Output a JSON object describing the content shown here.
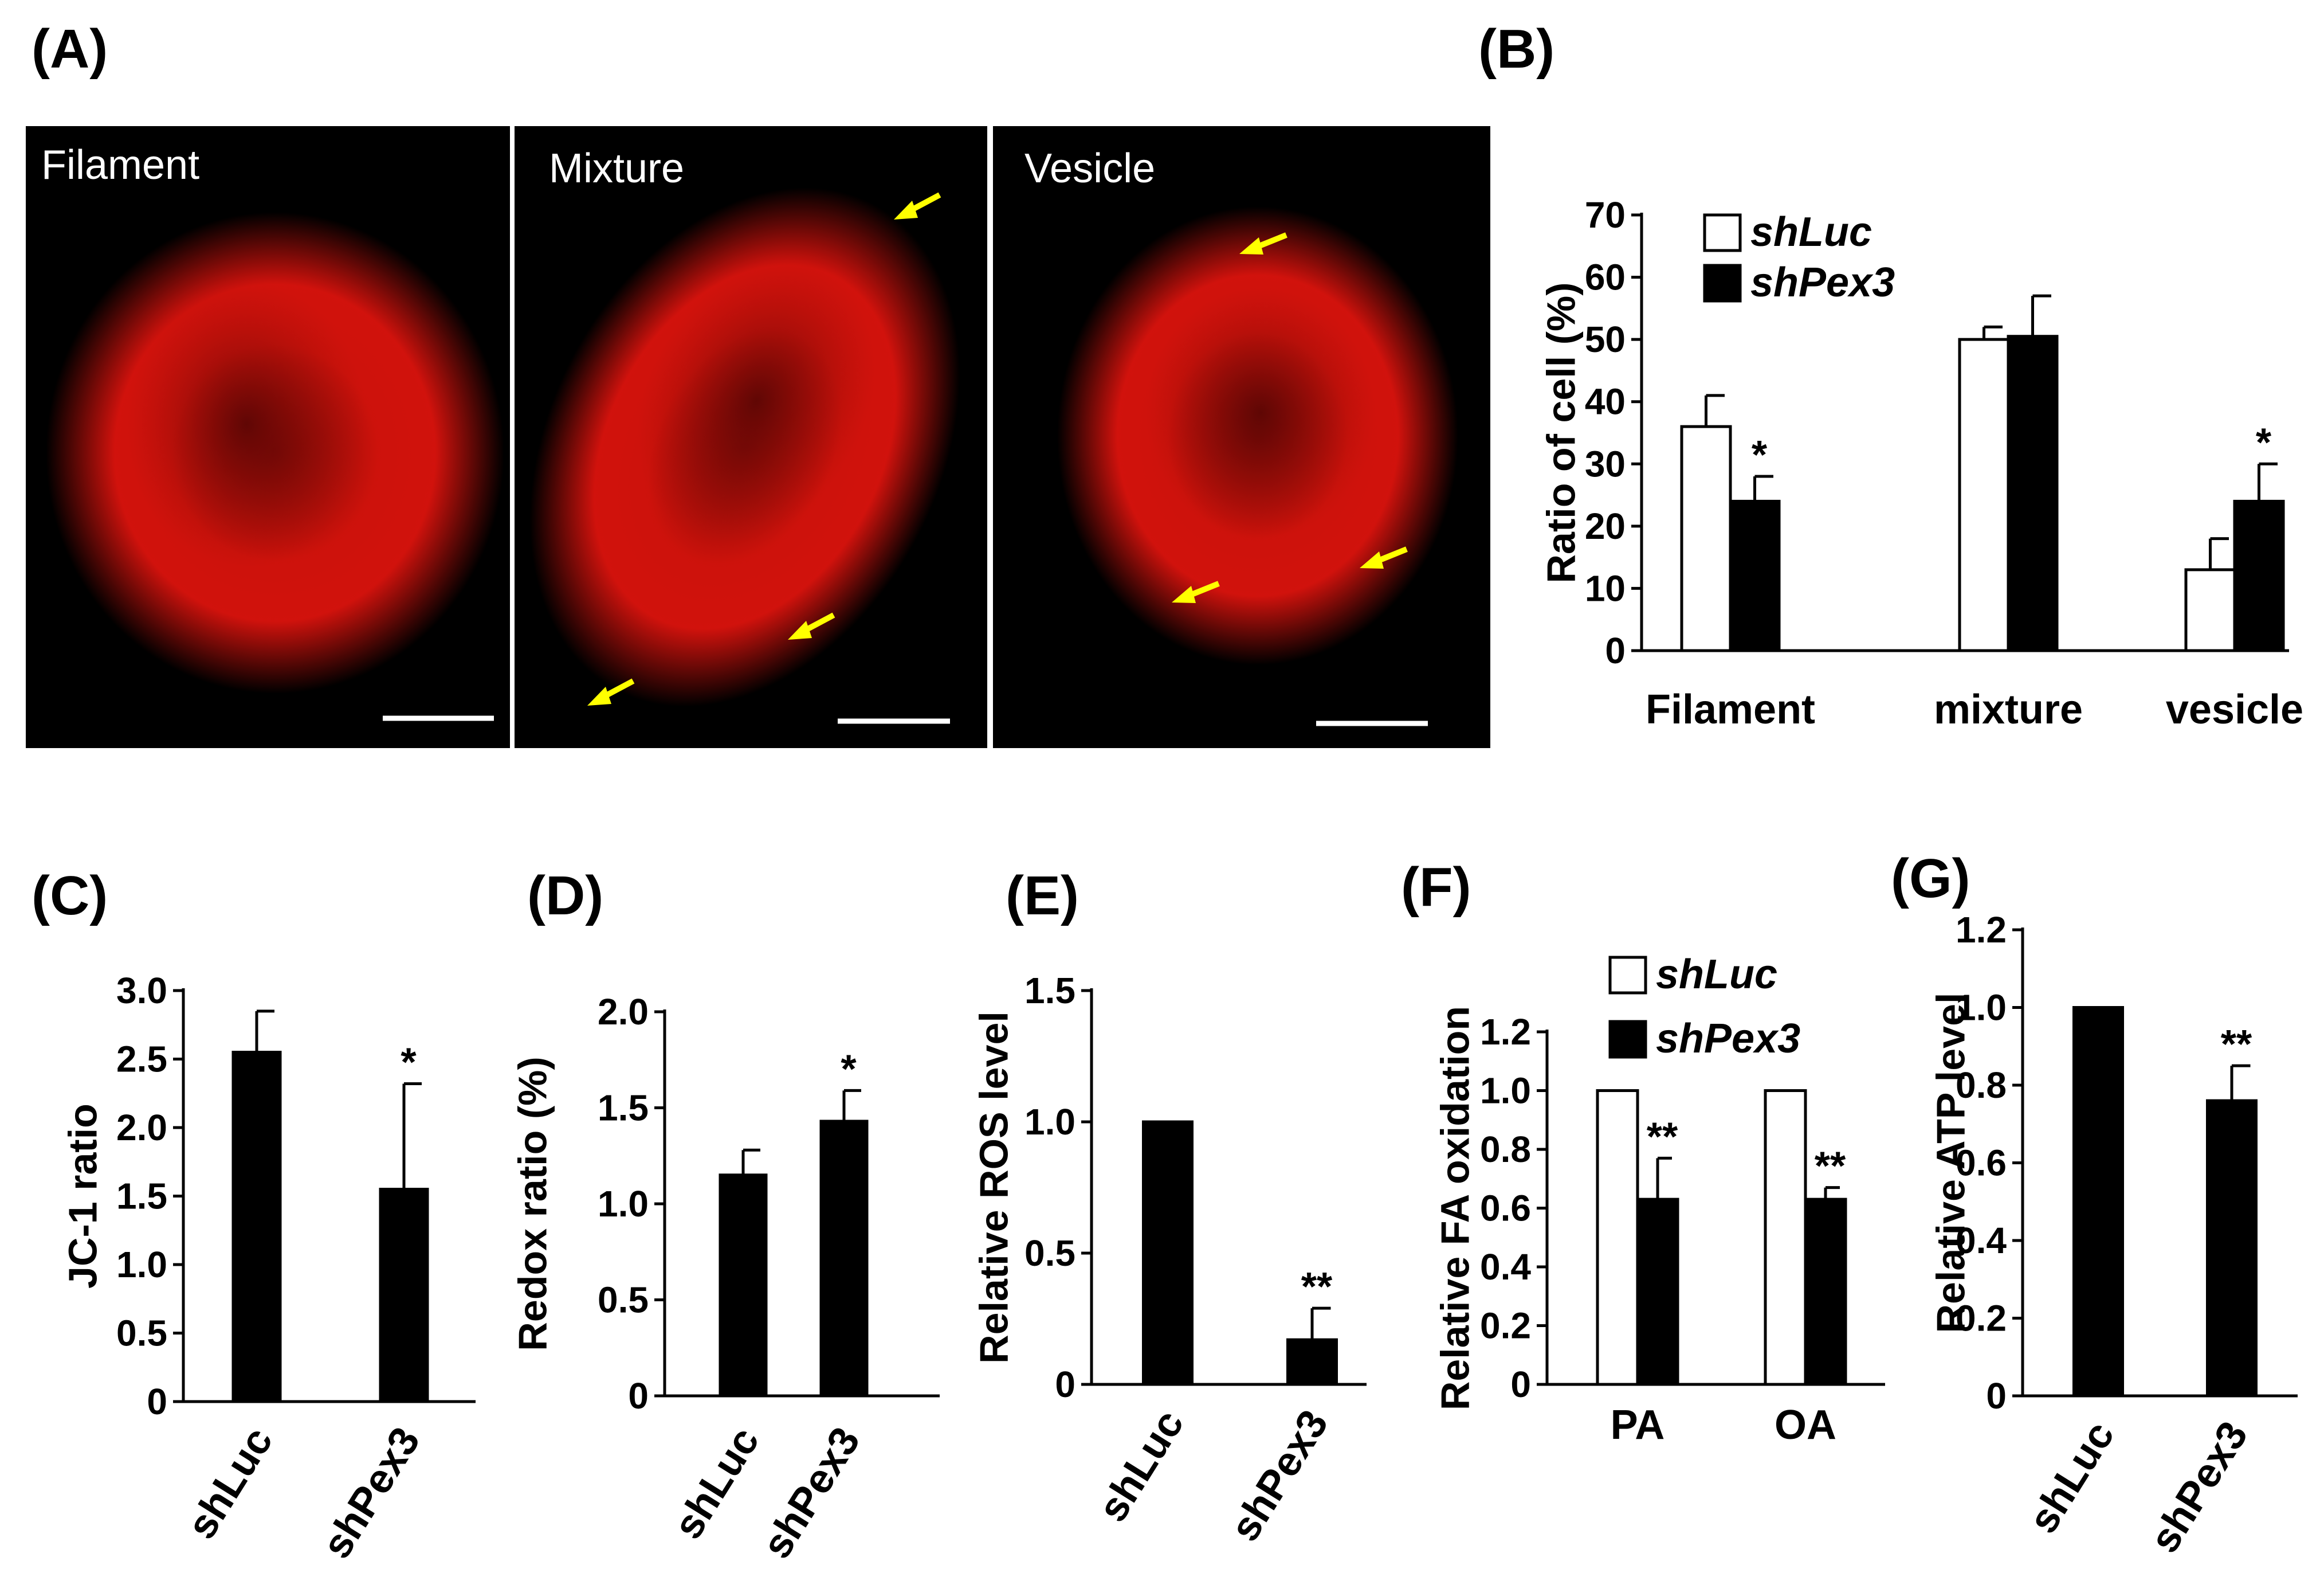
{
  "panel_labels": [
    "(A)",
    "(B)",
    "(C)",
    "(D)",
    "(E)",
    "(F)",
    "(G)"
  ],
  "colors": {
    "bar_dark": "#000000",
    "bar_light": "#ffffff",
    "mito": "#e8140e",
    "arrow": "#ffff00",
    "image_bg": "#000000"
  },
  "micrographs": [
    {
      "label": "Filament",
      "arrows": 0
    },
    {
      "label": "Mixture",
      "arrows": 3
    },
    {
      "label": "Vesicle",
      "arrows": 3
    }
  ],
  "chart_data": [
    {
      "panel": "(B)",
      "type": "bar",
      "categories": [
        "Filament",
        "mixture",
        "vesicle"
      ],
      "ylabel": "Ratio of cell (%)",
      "ylim": [
        0,
        70
      ],
      "yticks": [
        "0",
        "10",
        "20",
        "30",
        "40",
        "50",
        "60",
        "70"
      ],
      "legend": "top-left",
      "series": [
        {
          "name": "shLuc",
          "fill": "#ffffff",
          "values": [
            36,
            50,
            13
          ],
          "errors": [
            5,
            2,
            5
          ]
        },
        {
          "name": "shPex3",
          "fill": "#000000",
          "values": [
            24,
            50.5,
            24
          ],
          "errors": [
            4,
            6.5,
            6
          ]
        }
      ],
      "annotations": [
        {
          "category": 0,
          "series": 1,
          "text": "*"
        },
        {
          "category": 2,
          "series": 1,
          "text": "*"
        }
      ]
    },
    {
      "panel": "(C)",
      "type": "bar",
      "categories": [
        "shLuc",
        "shPex3"
      ],
      "ylabel": "JC-1 ratio",
      "ylim": [
        0,
        3.0
      ],
      "yticks": [
        "0",
        "0.5",
        "1.0",
        "1.5",
        "2.0",
        "2.5",
        "3.0"
      ],
      "values": [
        2.55,
        1.55
      ],
      "errors": [
        0.3,
        0.77
      ],
      "annotations": [
        {
          "category": 1,
          "text": "*"
        }
      ]
    },
    {
      "panel": "(D)",
      "type": "bar",
      "categories": [
        "shLuc",
        "shPex3"
      ],
      "ylabel": "Redox ratio (%)",
      "ylim": [
        0,
        2.0
      ],
      "yticks": [
        "0",
        "0.5",
        "1.0",
        "1.5",
        "2.0"
      ],
      "values": [
        1.15,
        1.43
      ],
      "errors": [
        0.13,
        0.16
      ],
      "annotations": [
        {
          "category": 1,
          "text": "*"
        }
      ]
    },
    {
      "panel": "(E)",
      "type": "bar",
      "categories": [
        "shLuc",
        "shPex3"
      ],
      "ylabel": "Relative ROS level",
      "ylim": [
        0,
        1.5
      ],
      "yticks": [
        "0",
        "0.5",
        "1.0",
        "1.5"
      ],
      "values": [
        1.0,
        0.17
      ],
      "errors": [
        0,
        0.12
      ],
      "annotations": [
        {
          "category": 1,
          "text": "**"
        }
      ]
    },
    {
      "panel": "(F)",
      "type": "bar",
      "categories": [
        "PA",
        "OA"
      ],
      "ylabel": "Relative FA oxidation",
      "ylim": [
        0,
        1.2
      ],
      "yticks": [
        "0",
        "0.2",
        "0.4",
        "0.6",
        "0.8",
        "1.0",
        "1.2"
      ],
      "legend": "top",
      "series": [
        {
          "name": "shLuc",
          "fill": "#ffffff",
          "values": [
            1.0,
            1.0
          ],
          "errors": [
            0,
            0
          ]
        },
        {
          "name": "shPex3",
          "fill": "#000000",
          "values": [
            0.63,
            0.63
          ],
          "errors": [
            0.14,
            0.04
          ]
        }
      ],
      "annotations": [
        {
          "category": 0,
          "series": 1,
          "text": "**"
        },
        {
          "category": 1,
          "series": 1,
          "text": "**"
        }
      ]
    },
    {
      "panel": "(G)",
      "type": "bar",
      "categories": [
        "shLuc",
        "shPex3"
      ],
      "ylabel": "Relative ATP level",
      "ylim": [
        0,
        1.2
      ],
      "yticks": [
        "0",
        "0.2",
        "0.4",
        "0.6",
        "0.8",
        "1.0",
        "1.2"
      ],
      "values": [
        1.0,
        0.76
      ],
      "errors": [
        0,
        0.09
      ],
      "annotations": [
        {
          "category": 1,
          "text": "**"
        }
      ]
    }
  ]
}
